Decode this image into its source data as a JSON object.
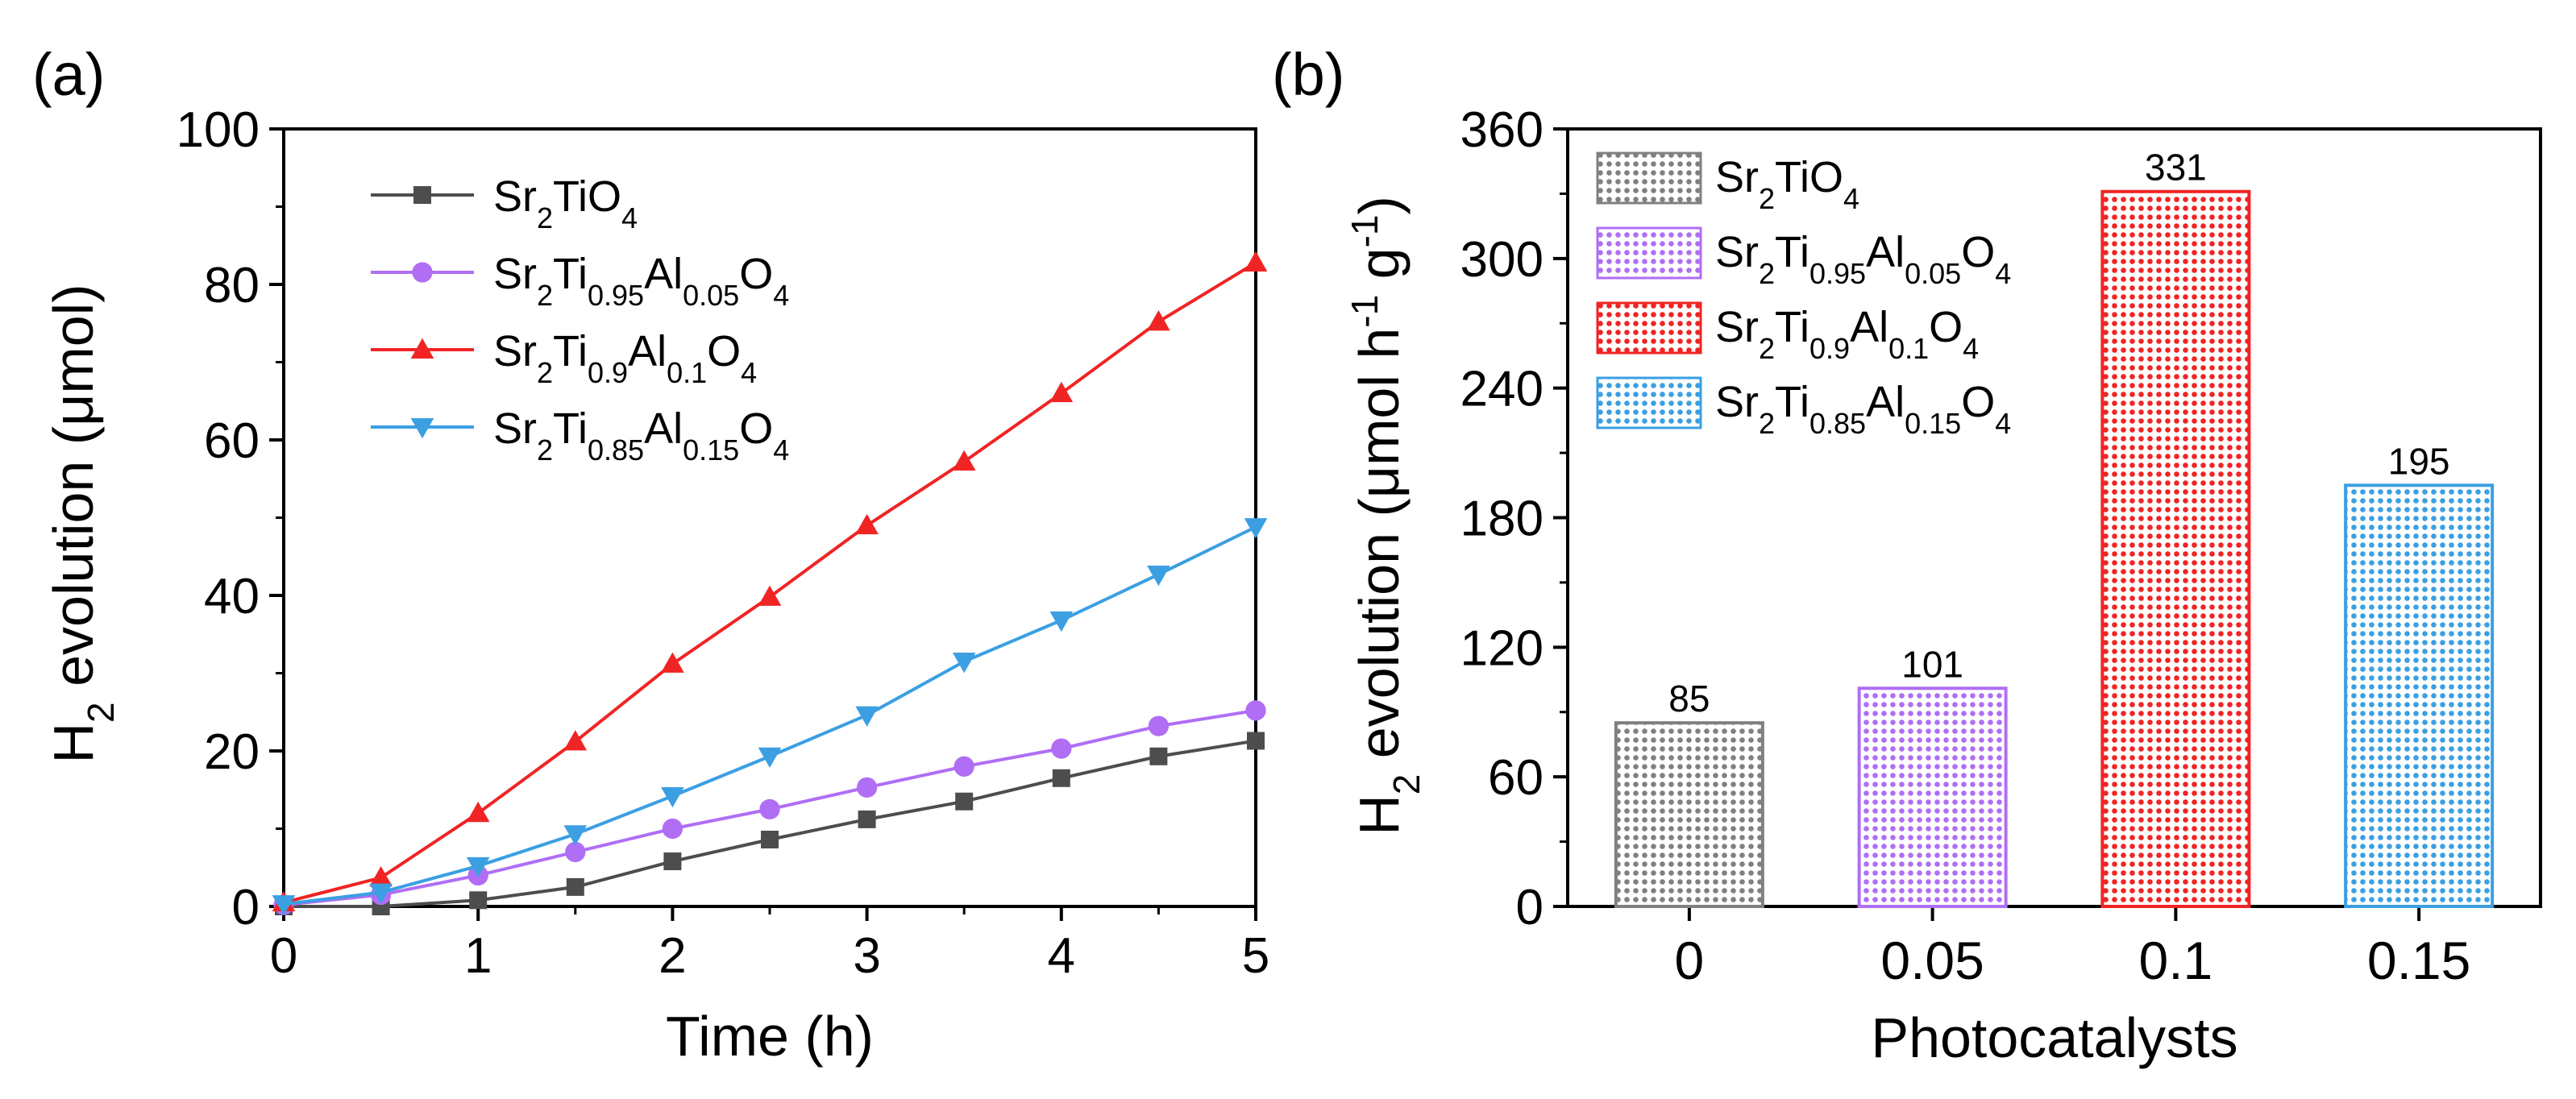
{
  "chart_data": [
    {
      "panel_label": "(a)",
      "type": "line",
      "xlabel": "Time (h)",
      "ylabel": {
        "main": "H",
        "sub": "2",
        "rest": " evolution (μmol)"
      },
      "xlim": [
        0,
        5
      ],
      "ylim": [
        0,
        100
      ],
      "xticks": [
        "0",
        "1",
        "2",
        "3",
        "4",
        "5"
      ],
      "yticks": [
        "0",
        "20",
        "40",
        "60",
        "80",
        "100"
      ],
      "legend_position": "top-left",
      "x": [
        0,
        0.5,
        1,
        1.5,
        2,
        2.5,
        3,
        3.5,
        4,
        4.5,
        5
      ],
      "series": [
        {
          "label": [
            [
              "Sr",
              ""
            ],
            [
              "2",
              "sub"
            ],
            [
              "TiO",
              ""
            ],
            [
              "4",
              "sub"
            ]
          ],
          "marker": "square",
          "color": "#4d4d4d",
          "values": [
            0,
            0,
            0.8,
            2.5,
            5.8,
            8.6,
            11.2,
            13.5,
            16.5,
            19.3,
            21.3
          ]
        },
        {
          "label": [
            [
              "Sr",
              ""
            ],
            [
              "2",
              "sub"
            ],
            [
              "Ti",
              ""
            ],
            [
              "0.95",
              "sub"
            ],
            [
              "Al",
              ""
            ],
            [
              "0.05",
              "sub"
            ],
            [
              "O",
              ""
            ],
            [
              "4",
              "sub"
            ]
          ],
          "marker": "circle",
          "color": "#b06ef5",
          "values": [
            0.2,
            1.5,
            4.0,
            7.0,
            10.0,
            12.5,
            15.3,
            18.0,
            20.3,
            23.2,
            25.2
          ]
        },
        {
          "label": [
            [
              "Sr",
              ""
            ],
            [
              "2",
              "sub"
            ],
            [
              "Ti",
              ""
            ],
            [
              "0.9",
              "sub"
            ],
            [
              "Al",
              ""
            ],
            [
              "0.1",
              "sub"
            ],
            [
              "O",
              ""
            ],
            [
              "4",
              "sub"
            ]
          ],
          "marker": "triangle-up",
          "color": "#f02424",
          "values": [
            0.5,
            3.7,
            12.0,
            21.2,
            31.2,
            39.8,
            49.0,
            57.2,
            66.0,
            75.2,
            82.8
          ]
        },
        {
          "label": [
            [
              "Sr",
              ""
            ],
            [
              "2",
              "sub"
            ],
            [
              "Ti",
              ""
            ],
            [
              "0.85",
              "sub"
            ],
            [
              "Al",
              ""
            ],
            [
              "0.15",
              "sub"
            ],
            [
              "O",
              ""
            ],
            [
              "4",
              "sub"
            ]
          ],
          "marker": "triangle-down",
          "color": "#3b9fe2",
          "values": [
            0.3,
            1.8,
            5.2,
            9.3,
            14.2,
            19.3,
            24.6,
            31.5,
            36.8,
            42.7,
            48.8
          ]
        }
      ]
    },
    {
      "panel_label": "(b)",
      "type": "bar",
      "xlabel": "Photocatalysts",
      "ylabel": [
        [
          "H",
          ""
        ],
        [
          "2",
          "sub"
        ],
        [
          " evolution (μmol h",
          ""
        ],
        [
          "-1",
          "sup"
        ],
        [
          " g",
          ""
        ],
        [
          "-1",
          "sup"
        ],
        [
          ")",
          ""
        ]
      ],
      "ylim": [
        0,
        360
      ],
      "yticks": [
        "0",
        "60",
        "120",
        "180",
        "240",
        "300",
        "360"
      ],
      "categories": [
        "0",
        "0.05",
        "0.1",
        "0.15"
      ],
      "values": [
        85,
        101,
        331,
        195
      ],
      "data_labels": [
        "85",
        "101",
        "331",
        "195"
      ],
      "bar_colors": [
        "#808080",
        "#b06ef5",
        "#f02424",
        "#3b9fe2"
      ],
      "legend_position": "top-left",
      "legend": [
        [
          [
            "Sr",
            ""
          ],
          [
            "2",
            "sub"
          ],
          [
            "TiO",
            ""
          ],
          [
            "4",
            "sub"
          ]
        ],
        [
          [
            "Sr",
            ""
          ],
          [
            "2",
            "sub"
          ],
          [
            "Ti",
            ""
          ],
          [
            "0.95",
            "sub"
          ],
          [
            "Al",
            ""
          ],
          [
            "0.05",
            "sub"
          ],
          [
            "O",
            ""
          ],
          [
            "4",
            "sub"
          ]
        ],
        [
          [
            "Sr",
            ""
          ],
          [
            "2",
            "sub"
          ],
          [
            "Ti",
            ""
          ],
          [
            "0.9",
            "sub"
          ],
          [
            "Al",
            ""
          ],
          [
            "0.1",
            "sub"
          ],
          [
            "O",
            ""
          ],
          [
            "4",
            "sub"
          ]
        ],
        [
          [
            "Sr",
            ""
          ],
          [
            "2",
            "sub"
          ],
          [
            "Ti",
            ""
          ],
          [
            "0.85",
            "sub"
          ],
          [
            "Al",
            ""
          ],
          [
            "0.15",
            "sub"
          ],
          [
            "O",
            ""
          ],
          [
            "4",
            "sub"
          ]
        ]
      ]
    }
  ]
}
